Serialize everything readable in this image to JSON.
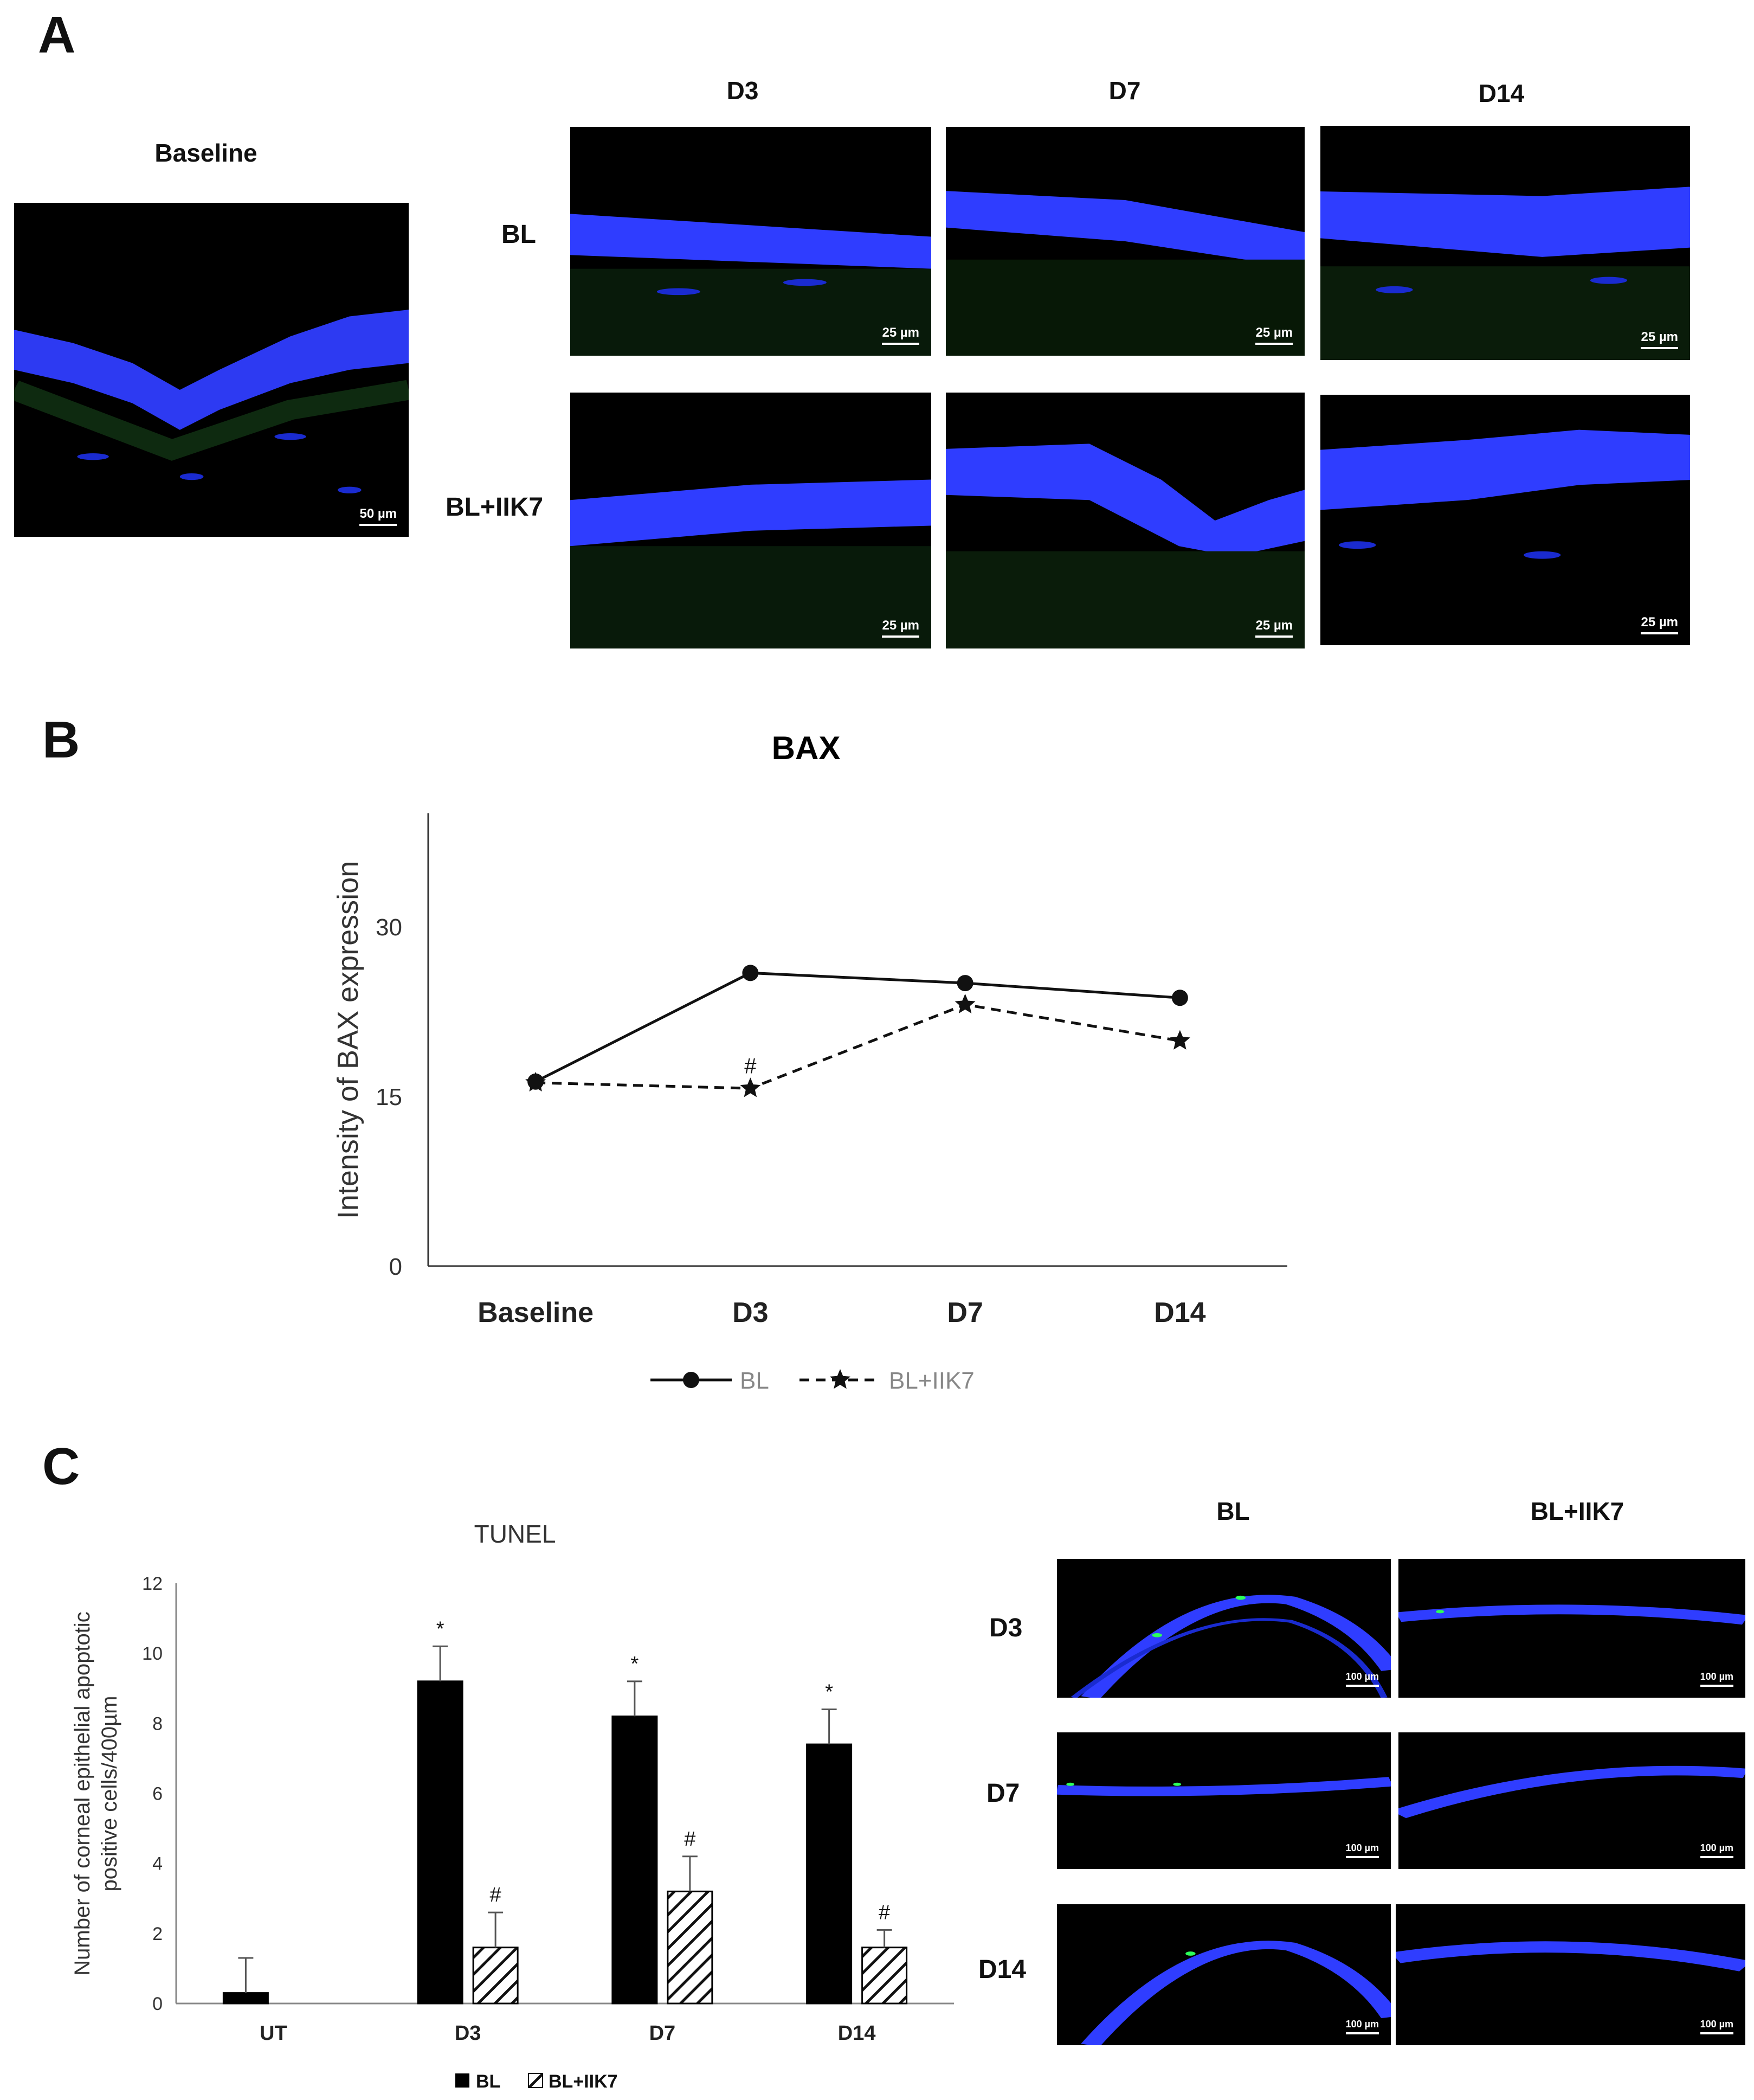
{
  "panelA": {
    "letter": "A",
    "baseline_label": "Baseline",
    "baseline_scale": "50 µm",
    "columns": [
      "D3",
      "D7",
      "D14"
    ],
    "rows": [
      "BL",
      "BL+IIK7"
    ],
    "scale": "25 µm"
  },
  "panelB": {
    "letter": "B"
  },
  "panelC": {
    "letter": "C",
    "micro_columns": [
      "BL",
      "BL+IIK7"
    ],
    "micro_rows": [
      "D3",
      "D7",
      "D14"
    ],
    "micro_scale": "100 µm"
  },
  "chart_data": [
    {
      "type": "line",
      "title": "BAX",
      "xlabel": "",
      "ylabel": "Intensity of BAX expression",
      "categories": [
        "Baseline",
        "D3",
        "D7",
        "D14"
      ],
      "ylim": [
        0,
        40
      ],
      "yticks": [
        0,
        15,
        30
      ],
      "series": [
        {
          "name": "BL",
          "values": [
            16.3,
            25.9,
            25.0,
            23.7
          ],
          "style": "solid",
          "marker": "circle"
        },
        {
          "name": "BL+IIK7",
          "values": [
            16.2,
            15.7,
            23.1,
            19.9
          ],
          "style": "dashed",
          "marker": "star"
        }
      ],
      "annotations": [
        {
          "text": "#",
          "category": "D3",
          "series": "BL+IIK7"
        }
      ],
      "legend": "bottom",
      "grid": false
    },
    {
      "type": "bar",
      "title": "TUNEL",
      "xlabel": "",
      "ylabel": "Number of corneal epithelial apoptotic positive cells/400µm",
      "categories": [
        "UT",
        "D3",
        "D7",
        "D14"
      ],
      "ylim": [
        0,
        12
      ],
      "yticks": [
        0,
        2,
        4,
        6,
        8,
        10,
        12
      ],
      "series": [
        {
          "name": "BL",
          "values": [
            0.3,
            9.2,
            8.2,
            7.4
          ],
          "errors": [
            1.0,
            1.0,
            1.0,
            1.0
          ],
          "labels": [
            "",
            "*",
            "*",
            "*"
          ],
          "fill": "solid"
        },
        {
          "name": "BL+IIK7",
          "values": [
            null,
            1.6,
            3.2,
            1.6
          ],
          "errors": [
            null,
            1.0,
            1.0,
            0.5
          ],
          "labels": [
            "",
            "#",
            "#",
            "#"
          ],
          "fill": "hatched"
        }
      ],
      "legend": "bottom",
      "grid": false
    }
  ]
}
